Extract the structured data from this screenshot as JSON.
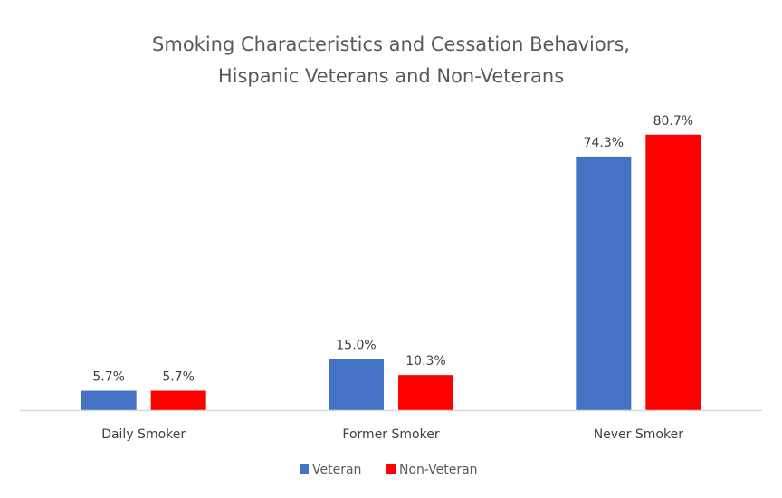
{
  "chart_data": {
    "type": "bar",
    "title": "Smoking Characteristics and Cessation Behaviors, Hispanic Veterans and Non-Veterans",
    "title_lines": [
      "Smoking Characteristics and Cessation Behaviors,",
      "Hispanic Veterans and Non-Veterans"
    ],
    "categories": [
      "Daily Smoker",
      "Former Smoker",
      "Never Smoker"
    ],
    "series": [
      {
        "name": "Veteran",
        "color": "#4472C4",
        "values": [
          5.7,
          15.0,
          74.3
        ],
        "labels": [
          "5.7%",
          "15.0%",
          "74.3%"
        ]
      },
      {
        "name": "Non-Veteran",
        "color": "#FF0000",
        "values": [
          5.7,
          10.3,
          80.7
        ],
        "labels": [
          "5.7%",
          "10.3%",
          "80.7%"
        ]
      }
    ],
    "xlabel": "",
    "ylabel": "",
    "ylim": [
      0,
      90
    ],
    "value_unit": "%",
    "grid": false,
    "y_axis_visible": false,
    "legend": {
      "position": "bottom",
      "entries": [
        "Veteran",
        "Non-Veteran"
      ]
    },
    "axis_color": "#D9D9D9"
  }
}
